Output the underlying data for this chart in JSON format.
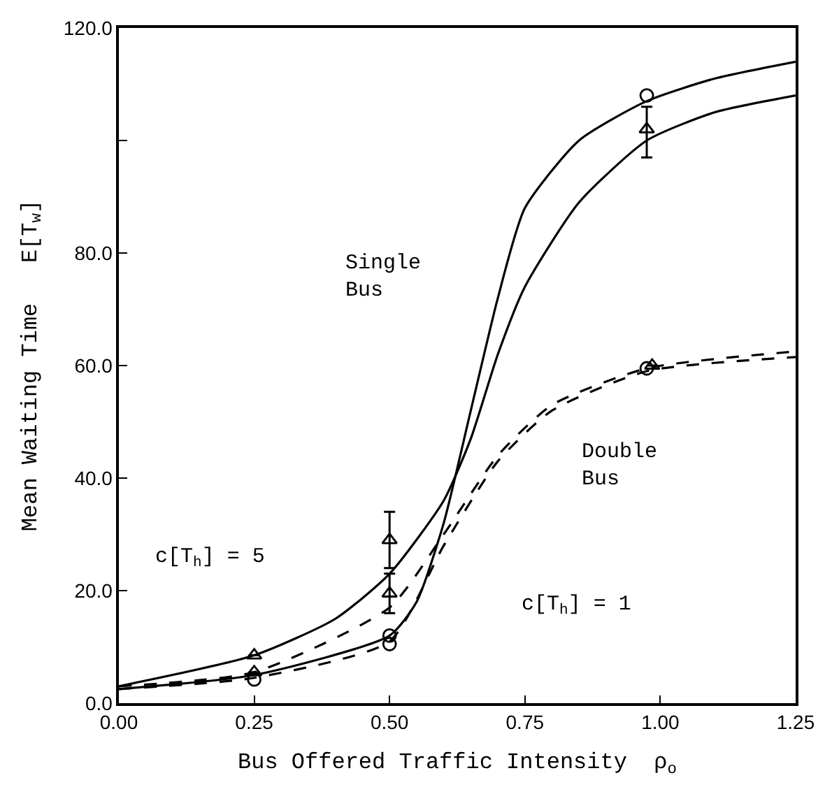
{
  "chart_data": {
    "type": "line",
    "xlabel": "Bus Offered Traffic Intensity  ρ$_{o}$",
    "ylabel": "Mean Waiting Time   E[T$_{w}$]",
    "xlim": [
      0,
      1.25
    ],
    "xticks": [
      {
        "value": 0,
        "label": "0.00"
      },
      {
        "value": 0.25,
        "label": "0.25"
      },
      {
        "value": 0.5,
        "label": "0.50"
      },
      {
        "value": 0.75,
        "label": "0.75"
      },
      {
        "value": 1,
        "label": "1.00"
      },
      {
        "value": 1.25,
        "label": "1.25"
      }
    ],
    "ylim": [
      0,
      120
    ],
    "yticks": [
      {
        "value": 0,
        "label": "0.0"
      },
      {
        "value": 20,
        "label": "20.0"
      },
      {
        "value": 40,
        "label": "40.0"
      },
      {
        "value": 60,
        "label": "60.0"
      },
      {
        "value": 80,
        "label": "80.0"
      },
      {
        "value": 100,
        "label": null
      },
      {
        "value": 120,
        "label": "120.0"
      }
    ],
    "series": [
      {
        "line_style": "solid",
        "color": "#000000",
        "x": [
          0,
          0.25,
          0.5,
          0.55,
          0.6,
          0.65,
          0.7,
          0.75,
          0.85,
          0.975,
          1.1,
          1.25
        ],
        "values": [
          2.5,
          5,
          12,
          18,
          32,
          52,
          72,
          88,
          100,
          107,
          111,
          114
        ]
      },
      {
        "line_style": "solid",
        "color": "#000000",
        "x": [
          0,
          0.25,
          0.4,
          0.5,
          0.6,
          0.65,
          0.7,
          0.75,
          0.85,
          0.975,
          1.1,
          1.25
        ],
        "values": [
          3,
          8.5,
          15,
          23,
          36,
          47,
          62,
          74,
          89,
          100,
          105,
          108
        ]
      },
      {
        "line_style": "dashed",
        "color": "#000000",
        "x": [
          0,
          0.25,
          0.5,
          0.6,
          0.7,
          0.8,
          0.975,
          1.25
        ],
        "values": [
          3,
          5.5,
          17,
          30,
          44,
          53,
          59.5,
          62.5
        ]
      },
      {
        "line_style": "dashed",
        "color": "#000000",
        "x": [
          0,
          0.25,
          0.5,
          0.6,
          0.7,
          0.8,
          0.975,
          1.25
        ],
        "values": [
          2.5,
          4.5,
          11,
          28,
          43,
          52,
          59,
          61.5
        ]
      },
      {
        "type": "scatter",
        "marker": "triangle",
        "color": "#000000",
        "x": [
          0.25,
          0.25,
          0.5,
          0.5,
          0.975,
          0.985
        ],
        "values": [
          8.5,
          5.5,
          29,
          19.5,
          102,
          60
        ],
        "errors": [
          null,
          null,
          [
            24,
            34
          ],
          [
            16,
            23
          ],
          [
            97,
            106
          ],
          null
        ]
      },
      {
        "type": "scatter",
        "marker": "circle",
        "color": "#000000",
        "x": [
          0.25,
          0.5,
          0.5,
          0.975,
          0.975
        ],
        "values": [
          4.2,
          12,
          10.5,
          108,
          59.5
        ]
      }
    ],
    "annotations": [
      "Single\nBus",
      "Double\nBus",
      "c[T$_{h}$] = 5",
      "c[T$_{h}$] = 1"
    ]
  }
}
